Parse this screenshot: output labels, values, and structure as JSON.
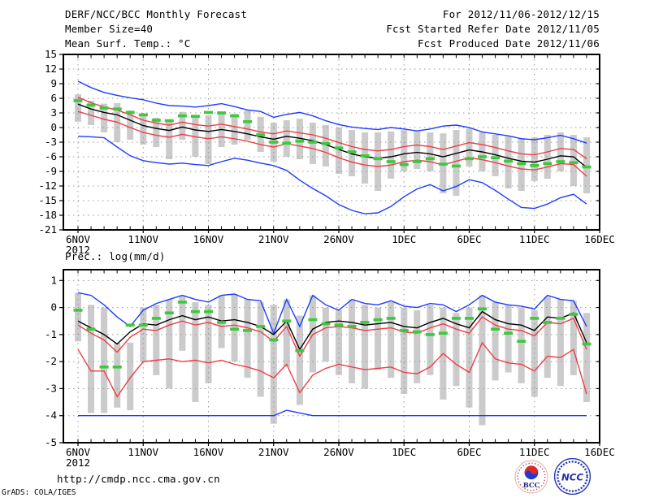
{
  "header": {
    "title": "DERF/NCC/BCC Monthly Forecast",
    "member_size": "Member Size=40",
    "for_range": "For 2012/11/06-2012/12/15",
    "refer_date": "Fcst Started Refer Date 2012/11/05",
    "produced_date": "Fcst Produced Date 2012/11/06"
  },
  "footer": {
    "url": "http://cmdp.ncc.cma.gov.cn",
    "grads_credit": "GrADS: COLA/IGES",
    "logos": [
      {
        "name": "bcc-logo",
        "text": "BCC"
      },
      {
        "name": "ncc-logo",
        "text": "NCC"
      }
    ]
  },
  "colors": {
    "blue": "#1e3cff",
    "red": "#f03c44",
    "black": "#000000",
    "green": "#3dc93d",
    "bar": "#cbcbcb",
    "grid": "#999999",
    "frame": "#000000"
  },
  "chart_data": [
    {
      "name": "temperature",
      "type": "line",
      "title": "Mean Surf. Temp.: °C",
      "ylim": [
        -21,
        15
      ],
      "yticks": [
        15,
        12,
        9,
        6,
        3,
        0,
        -3,
        -6,
        -9,
        -12,
        -15,
        -18,
        -21
      ],
      "ytick_labels": [
        "15",
        "12",
        "9",
        "6",
        "3",
        "0",
        "-3",
        "-6",
        "-9",
        "-12",
        "-15",
        "-18",
        "-21"
      ],
      "x_tick_days": [
        0,
        5,
        10,
        15,
        20,
        25,
        30,
        35,
        40
      ],
      "x_tick_labels": [
        "6NOV",
        "11NOV",
        "16NOV",
        "21NOV",
        "26NOV",
        "1DEC",
        "6DEC",
        "11DEC",
        "16DEC"
      ],
      "x_sub_label": "2012",
      "grid": true,
      "series": [
        {
          "name": "ensemble-max",
          "color": "blue",
          "values": [
            9.5,
            8.2,
            7.2,
            6.6,
            6.1,
            5.7,
            5.0,
            4.5,
            4.4,
            4.2,
            4.5,
            4.9,
            4.3,
            3.6,
            3.3,
            2.1,
            2.7,
            3.1,
            2.4,
            1.4,
            0.6,
            0.1,
            -0.2,
            -0.4,
            0.0,
            -0.3,
            -0.7,
            -0.3,
            0.3,
            0.5,
            0.0,
            -0.9,
            -1.3,
            -1.7,
            -2.3,
            -2.5,
            -2.1,
            -1.6,
            -2.3,
            -3.2
          ]
        },
        {
          "name": "upper-bound",
          "color": "red",
          "values": [
            6.2,
            5.1,
            4.2,
            3.6,
            2.6,
            1.5,
            0.9,
            0.5,
            1.1,
            0.6,
            0.3,
            0.7,
            0.2,
            -0.3,
            -0.9,
            -1.3,
            -0.7,
            -1.1,
            -1.5,
            -2.2,
            -3.1,
            -3.9,
            -4.5,
            -4.8,
            -4.5,
            -3.9,
            -3.6,
            -3.9,
            -4.5,
            -3.8,
            -3.1,
            -3.5,
            -4.1,
            -4.8,
            -5.4,
            -5.6,
            -5.0,
            -4.3,
            -4.5,
            -6.4
          ]
        },
        {
          "name": "lower-bound",
          "color": "red",
          "values": [
            3.3,
            2.5,
            1.7,
            1.1,
            0.0,
            -1.0,
            -1.6,
            -2.0,
            -1.4,
            -1.9,
            -2.3,
            -1.9,
            -2.3,
            -2.8,
            -3.5,
            -4.0,
            -3.3,
            -3.8,
            -4.3,
            -5.1,
            -6.2,
            -7.1,
            -7.7,
            -8.0,
            -7.7,
            -7.0,
            -6.7,
            -7.0,
            -7.7,
            -6.9,
            -6.2,
            -6.6,
            -7.2,
            -7.9,
            -8.5,
            -8.7,
            -8.1,
            -7.4,
            -7.6,
            -10.0
          ]
        },
        {
          "name": "ensemble-min",
          "color": "blue",
          "values": [
            -1.8,
            -1.9,
            -2.1,
            -4.0,
            -5.8,
            -6.8,
            -7.2,
            -7.5,
            -7.3,
            -7.6,
            -7.8,
            -7.0,
            -6.3,
            -6.7,
            -7.3,
            -7.8,
            -8.8,
            -10.8,
            -12.5,
            -14.0,
            -15.8,
            -17.0,
            -17.7,
            -17.5,
            -16.2,
            -14.2,
            -12.6,
            -11.7,
            -13.0,
            -12.1,
            -10.7,
            -11.3,
            -12.9,
            -14.7,
            -16.4,
            -16.6,
            -15.7,
            -14.4,
            -13.7,
            -15.7
          ]
        },
        {
          "name": "ensemble-mean",
          "color": "black",
          "values": [
            4.8,
            3.8,
            3.1,
            2.6,
            1.5,
            0.4,
            -0.2,
            -0.6,
            0.1,
            -0.5,
            -0.8,
            -0.4,
            -0.8,
            -1.3,
            -1.9,
            -2.4,
            -1.8,
            -2.2,
            -2.7,
            -3.5,
            -4.5,
            -5.4,
            -6.0,
            -6.3,
            -6.0,
            -5.4,
            -5.1,
            -5.4,
            -6.0,
            -5.3,
            -4.6,
            -5.0,
            -5.6,
            -6.3,
            -6.9,
            -7.1,
            -6.5,
            -5.8,
            -6.0,
            -8.2
          ]
        }
      ],
      "obs": {
        "name": "observation-dashes",
        "color": "green",
        "values": [
          5.5,
          4.6,
          4.0,
          3.8,
          3.1,
          2.6,
          1.5,
          1.4,
          2.4,
          2.3,
          3.1,
          3.0,
          2.4,
          1.2,
          -1.5,
          -3.0,
          -3.2,
          -2.8,
          -3.0,
          -3.3,
          -4.2,
          -5.0,
          -5.8,
          -6.4,
          -7.0,
          -7.6,
          -7.0,
          -6.4,
          -7.5,
          -7.9,
          -6.4,
          -6.0,
          -6.2,
          -6.9,
          -7.4,
          -7.8,
          -7.4,
          -7.0,
          -7.2,
          -8.1
        ]
      },
      "bars": {
        "top": [
          6.8,
          5.5,
          4.9,
          5.0,
          3.5,
          2.5,
          2.0,
          1.6,
          3.2,
          2.2,
          2.5,
          3.3,
          2.8,
          3.5,
          2.2,
          1.0,
          1.5,
          1.8,
          1.0,
          0.5,
          0.0,
          -0.5,
          -1.0,
          -1.0,
          -0.8,
          -0.5,
          -0.8,
          -1.0,
          -1.2,
          -0.5,
          -0.2,
          -1.0,
          -1.5,
          -1.8,
          -2.2,
          -2.0,
          -1.5,
          -1.0,
          -1.5,
          -2.0
        ],
        "bottom": [
          1.2,
          0.5,
          -1.0,
          -3.0,
          -2.5,
          -3.5,
          -4.0,
          -6.5,
          -2.5,
          -6.0,
          -7.5,
          -4.0,
          -3.5,
          -2.5,
          -5.0,
          -7.0,
          -6.0,
          -6.5,
          -7.5,
          -8.0,
          -9.5,
          -10.0,
          -11.5,
          -13.0,
          -10.5,
          -9.0,
          -8.5,
          -9.0,
          -13.5,
          -14.0,
          -8.0,
          -9.0,
          -10.0,
          -12.5,
          -13.0,
          -11.0,
          -10.5,
          -9.0,
          -12.0,
          -13.5
        ]
      }
    },
    {
      "name": "precipitation",
      "type": "line",
      "title": "Prec.: log(mm/d)",
      "ylim": [
        -5,
        1.4
      ],
      "yticks": [
        1,
        0,
        -1,
        -2,
        -3,
        -4,
        -5
      ],
      "ytick_labels": [
        "1",
        "0",
        "-1",
        "-2",
        "-3",
        "-4",
        "-5"
      ],
      "x_tick_days": [
        0,
        5,
        10,
        15,
        20,
        25,
        30,
        35,
        40
      ],
      "x_tick_labels": [
        "6NOV",
        "11NOV",
        "16NOV",
        "21NOV",
        "26NOV",
        "1DEC",
        "6DEC",
        "11DEC",
        "16DEC"
      ],
      "x_sub_label": "2012",
      "grid": true,
      "series": [
        {
          "name": "ensemble-max",
          "color": "blue",
          "values": [
            0.55,
            0.45,
            0.1,
            -0.35,
            -0.7,
            -0.1,
            0.15,
            0.3,
            0.45,
            0.3,
            0.2,
            0.45,
            0.5,
            0.3,
            0.25,
            -0.95,
            0.3,
            -0.7,
            0.45,
            0.1,
            -0.1,
            0.3,
            0.15,
            0.1,
            0.25,
            0.05,
            0.0,
            0.15,
            0.1,
            -0.15,
            0.1,
            0.45,
            0.2,
            0.1,
            0.05,
            -0.05,
            0.45,
            0.3,
            0.25,
            -0.7
          ]
        },
        {
          "name": "upper-bound",
          "color": "red",
          "values": [
            -0.65,
            -0.95,
            -1.2,
            -1.65,
            -1.1,
            -0.8,
            -0.85,
            -0.65,
            -0.5,
            -0.65,
            -0.55,
            -0.7,
            -0.65,
            -0.75,
            -0.9,
            -1.25,
            -0.7,
            -1.8,
            -1.0,
            -0.75,
            -0.7,
            -0.75,
            -0.85,
            -0.8,
            -0.75,
            -0.9,
            -0.95,
            -0.75,
            -0.6,
            -0.8,
            -0.95,
            -0.35,
            -0.65,
            -0.8,
            -0.85,
            -1.05,
            -0.55,
            -0.6,
            -0.4,
            -1.55
          ]
        },
        {
          "name": "lower-bound",
          "color": "red",
          "values": [
            -1.55,
            -2.35,
            -2.35,
            -3.3,
            -2.6,
            -2.0,
            -1.95,
            -1.9,
            -2.0,
            -1.95,
            -2.05,
            -1.95,
            -2.1,
            -2.2,
            -2.35,
            -2.6,
            -2.1,
            -3.15,
            -2.5,
            -2.25,
            -2.1,
            -2.2,
            -2.3,
            -2.25,
            -2.2,
            -2.4,
            -2.45,
            -2.2,
            -1.7,
            -2.1,
            -2.4,
            -1.3,
            -1.9,
            -2.05,
            -2.1,
            -2.35,
            -1.8,
            -1.85,
            -1.55,
            -3.2
          ]
        },
        {
          "name": "ensemble-min",
          "color": "blue",
          "values": [
            -4,
            -4,
            -4,
            -4,
            -4,
            -4,
            -4,
            -4,
            -4,
            -4,
            -4,
            -4,
            -4,
            -4,
            -4,
            -4,
            -3.8,
            -3.9,
            -4,
            -4,
            -4,
            -4,
            -4,
            -4,
            -4,
            -4,
            -4,
            -4,
            -4,
            -4,
            -4,
            -4,
            -4,
            -4,
            -4,
            -4,
            -4,
            -4,
            -4,
            -4
          ]
        },
        {
          "name": "ensemble-mean",
          "color": "black",
          "values": [
            -0.5,
            -0.75,
            -1.0,
            -1.35,
            -0.9,
            -0.6,
            -0.65,
            -0.45,
            -0.3,
            -0.45,
            -0.35,
            -0.5,
            -0.45,
            -0.55,
            -0.7,
            -1.0,
            -0.5,
            -1.55,
            -0.8,
            -0.55,
            -0.5,
            -0.55,
            -0.65,
            -0.6,
            -0.55,
            -0.7,
            -0.75,
            -0.55,
            -0.4,
            -0.6,
            -0.75,
            -0.15,
            -0.45,
            -0.6,
            -0.65,
            -0.85,
            -0.35,
            -0.4,
            -0.2,
            -1.3
          ]
        }
      ],
      "obs": {
        "name": "observation-dashes",
        "color": "green",
        "values": [
          -0.1,
          -0.8,
          -2.2,
          -2.2,
          -0.65,
          -0.65,
          -0.4,
          -0.2,
          0.2,
          -0.15,
          -0.15,
          -0.55,
          -0.8,
          -0.85,
          -0.7,
          -1.2,
          -0.5,
          -1.6,
          -0.45,
          -0.6,
          -0.65,
          -0.7,
          -0.55,
          -0.45,
          -0.4,
          -0.85,
          -0.9,
          -1.0,
          -0.95,
          -0.4,
          -0.4,
          -0.05,
          -0.8,
          -0.95,
          -1.25,
          -0.4,
          -0.55,
          -0.4,
          -0.25,
          -1.35
        ]
      },
      "bars": {
        "top": [
          0.55,
          0.1,
          0.0,
          -1.3,
          -1.3,
          0.0,
          0.1,
          0.3,
          0.45,
          0.2,
          0.1,
          0.45,
          0.5,
          0.3,
          0.2,
          0.1,
          0.3,
          -0.3,
          0.45,
          0.0,
          -0.1,
          0.3,
          0.1,
          0.0,
          0.2,
          0.0,
          -0.1,
          0.1,
          0.0,
          -0.2,
          0.0,
          0.45,
          0.2,
          0.1,
          0.0,
          -0.1,
          0.4,
          0.3,
          0.25,
          -0.2
        ],
        "bottom": [
          -1.25,
          -3.9,
          -3.9,
          -3.7,
          -3.8,
          -2.0,
          -2.5,
          -3.0,
          -1.6,
          -3.5,
          -2.8,
          -1.5,
          -2.0,
          -2.6,
          -3.3,
          -4.3,
          -2.2,
          -3.6,
          -2.4,
          -2.0,
          -2.5,
          -2.8,
          -3.0,
          -2.3,
          -2.6,
          -3.2,
          -2.8,
          -2.5,
          -3.4,
          -2.9,
          -3.7,
          -4.35,
          -2.7,
          -2.4,
          -2.8,
          -3.3,
          -2.6,
          -2.9,
          -2.5,
          -3.5
        ]
      }
    }
  ]
}
